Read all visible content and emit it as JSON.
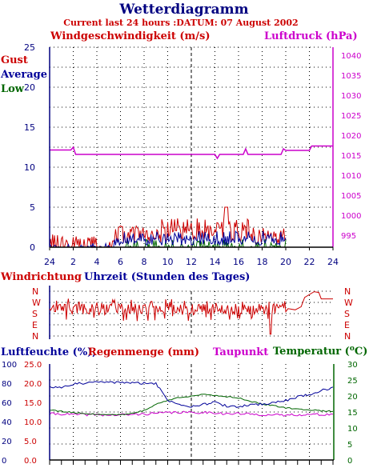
{
  "title": "Wetterdiagramm",
  "subtitle": "Current last 24 hours :DATUM: 07 August 2002",
  "colors": {
    "red": "#cc0000",
    "blue": "#000099",
    "green": "#006600",
    "magenta": "#cc00cc",
    "navy": "#000080"
  },
  "chart_data": [
    {
      "type": "line",
      "labels": {
        "wind": "Windgeschwindigkeit (m/s)",
        "pressure": "Luftdruck (hPa)",
        "gust": "Gust",
        "average": "Average",
        "low": "Low"
      },
      "x_tick_labels": [
        "24",
        "2",
        "4",
        "6",
        "8",
        "10",
        "12",
        "14",
        "16",
        "18",
        "20",
        "22",
        "24"
      ],
      "y_left_ticks": [
        "0",
        "5",
        "10",
        "15",
        "20",
        "25"
      ],
      "y_right_ticks": [
        "995",
        "1000",
        "1005",
        "1010",
        "1015",
        "1020",
        "1025",
        "1030",
        "1035",
        "1040"
      ],
      "ylim_left": [
        0,
        25
      ],
      "ylim_right": [
        992,
        1042
      ],
      "grid": true,
      "series": [
        {
          "name": "Luftdruck",
          "hours": [
            0,
            1.8,
            2.0,
            2.2,
            9,
            14.0,
            14.2,
            14.4,
            16.4,
            16.6,
            16.8,
            19.6,
            19.8,
            20.0,
            22.0,
            22.2,
            24
          ],
          "values": [
            1016.3,
            1016.3,
            1017.0,
            1015.2,
            1015.2,
            1015.2,
            1014.2,
            1015.2,
            1015.2,
            1016.6,
            1015.2,
            1015.2,
            1016.6,
            1016.2,
            1016.2,
            1017.3,
            1017.3
          ]
        },
        {
          "name": "Gust",
          "summary": "0 to 5 m/s between 0 h and 20 h, peak 5 m/s at about 15 h"
        },
        {
          "name": "Average",
          "summary": "0 to 2 m/s between 6 h and 20 h"
        },
        {
          "name": "Low",
          "summary": "0 to 1 m/s"
        }
      ]
    },
    {
      "type": "line",
      "labels": {
        "direction": "Windrichtung",
        "hours": "Uhrzeit (Stunden des Tages)"
      },
      "y_categories": [
        "N",
        "W",
        "S",
        "E",
        "N"
      ],
      "series": [
        {
          "name": "Windrichtung",
          "summary": "mostly between S and W from 0 h to 20 h, W to N around 22 h, then W until 24 h"
        }
      ]
    },
    {
      "type": "line",
      "labels": {
        "humidity": "Luftfeuchte (%),",
        "rain": "Regenmenge (mm)",
        "dewpoint": "Taupunkt",
        "temperature": "Temperatur (",
        "temp_unit": "C)"
      },
      "y_humidity_ticks": [
        "0",
        "20",
        "40",
        "60",
        "80",
        "100"
      ],
      "y_rain_ticks": [
        "0.0",
        "5.0",
        "10.0",
        "15.0",
        "20.0",
        "25.0"
      ],
      "y_temp_ticks": [
        "0",
        "5",
        "10",
        "15",
        "20",
        "25",
        "30"
      ],
      "grid": true,
      "series": [
        {
          "name": "Luftfeuchte",
          "hours": [
            0,
            1,
            2,
            3,
            4,
            5,
            6,
            7,
            8,
            9,
            10,
            11,
            12,
            13,
            14,
            15,
            16,
            17,
            18,
            19,
            20,
            21,
            22,
            23,
            24
          ],
          "values": [
            76,
            76,
            79,
            80,
            81,
            81,
            81,
            80,
            80,
            80,
            62,
            58,
            56,
            58,
            60,
            56,
            55,
            58,
            58,
            60,
            62,
            66,
            68,
            72,
            76
          ]
        },
        {
          "name": "Temperatur",
          "hours": [
            0,
            1,
            2,
            3,
            4,
            5,
            6,
            7,
            8,
            9,
            10,
            11,
            12,
            13,
            14,
            15,
            16,
            17,
            18,
            19,
            20,
            21,
            22,
            23,
            24
          ],
          "values": [
            15.6,
            15.2,
            14.8,
            14.5,
            14.3,
            14.2,
            14.2,
            14.5,
            15.5,
            17.4,
            18.6,
            19.6,
            20.0,
            20.4,
            20.2,
            19.8,
            19.4,
            18.4,
            17.5,
            16.9,
            16.3,
            15.9,
            15.7,
            15.4,
            15.2
          ]
        },
        {
          "name": "Taupunkt",
          "hours": [
            0,
            1,
            2,
            3,
            4,
            5,
            6,
            7,
            8,
            9,
            10,
            11,
            12,
            13,
            14,
            15,
            16,
            17,
            18,
            19,
            20,
            21,
            22,
            23,
            24
          ],
          "values": [
            14.4,
            14.4,
            14.2,
            14.2,
            14.2,
            14.0,
            14.1,
            14.2,
            14.4,
            14.6,
            14.8,
            14.9,
            14.8,
            14.9,
            14.8,
            14.4,
            14.5,
            14.3,
            14.2,
            14.0,
            14.0,
            14.2,
            14.2,
            14.2,
            14.3
          ]
        },
        {
          "name": "Regenmenge",
          "values": [
            0
          ]
        }
      ]
    }
  ]
}
